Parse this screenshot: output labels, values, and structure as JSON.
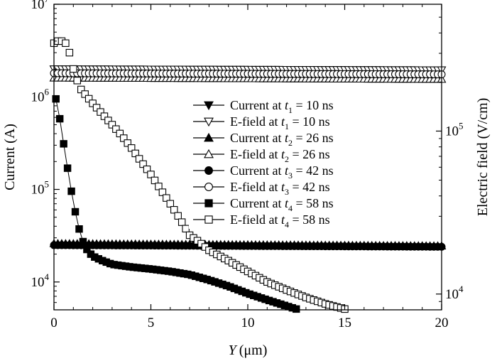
{
  "chart_data": {
    "type": "scatter",
    "xlabel": {
      "var": "Y",
      "unit": "(μm)"
    },
    "ylabel_left": "Current (A)",
    "ylabel_right": "Electric field (V/cm)",
    "xlim": [
      0,
      20
    ],
    "ylim_left": [
      5000,
      10000000
    ],
    "ylim_right": [
      8000,
      600000
    ],
    "yscale": "log",
    "x_ticks": [
      0,
      5,
      10,
      15,
      20
    ],
    "y_left_ticks": [
      {
        "value": 10000,
        "mantissa": "10",
        "exp": "4"
      },
      {
        "value": 100000,
        "mantissa": "10",
        "exp": "5"
      },
      {
        "value": 1000000,
        "mantissa": "10",
        "exp": "6"
      },
      {
        "value": 10000000,
        "mantissa": "10",
        "exp": "7"
      }
    ],
    "y_right_ticks": [
      {
        "value": 10000,
        "mantissa": "10",
        "exp": "4"
      },
      {
        "value": 100000,
        "mantissa": "10",
        "exp": "5"
      }
    ],
    "legend_position": "center-right",
    "series": [
      {
        "name": "Current at t1 = 10 ns",
        "label": {
          "pre": "Current at ",
          "var": "t",
          "sub": "1",
          "post": " = 10 ns"
        },
        "axis": "left",
        "marker": "triangle-down",
        "filled": true,
        "points": []
      },
      {
        "name": "E-field at t1 = 10 ns",
        "label": {
          "pre": "E-field at ",
          "var": "t",
          "sub": "1",
          "post": " = 10 ns"
        },
        "axis": "left",
        "marker": "triangle-down",
        "filled": false,
        "points": [
          [
            0,
            2000000
          ],
          [
            20,
            1950000
          ]
        ]
      },
      {
        "name": "Current at t2 = 26 ns",
        "label": {
          "pre": "Current at ",
          "var": "t",
          "sub": "2",
          "post": " = 26 ns"
        },
        "axis": "left",
        "marker": "triangle-up",
        "filled": true,
        "points": [
          [
            0,
            26000
          ],
          [
            20,
            24500
          ]
        ]
      },
      {
        "name": "E-field at t2 = 26 ns",
        "label": {
          "pre": "E-field at ",
          "var": "t",
          "sub": "2",
          "post": " = 26 ns"
        },
        "axis": "left",
        "marker": "triangle-up",
        "filled": false,
        "points": [
          [
            0,
            1600000
          ],
          [
            20,
            1550000
          ]
        ]
      },
      {
        "name": "Current at t3 = 42 ns",
        "label": {
          "pre": "Current at ",
          "var": "t",
          "sub": "3",
          "post": " = 42 ns"
        },
        "axis": "left",
        "marker": "circle",
        "filled": true,
        "points": [
          [
            0,
            25000
          ],
          [
            20,
            24000
          ]
        ]
      },
      {
        "name": "E-field at t3 = 42 ns",
        "label": {
          "pre": "E-field at ",
          "var": "t",
          "sub": "3",
          "post": " = 42 ns"
        },
        "axis": "left",
        "marker": "circle",
        "filled": false,
        "points": [
          [
            0,
            1800000
          ],
          [
            20,
            1750000
          ]
        ]
      },
      {
        "name": "Current at t4 = 58 ns",
        "label": {
          "pre": "Current at ",
          "var": "t",
          "sub": "4",
          "post": " = 58 ns"
        },
        "axis": "left",
        "marker": "square",
        "filled": true,
        "points": [
          [
            0.1,
            950000
          ],
          [
            0.2,
            800000
          ],
          [
            0.4,
            420000
          ],
          [
            0.6,
            230000
          ],
          [
            0.8,
            125000
          ],
          [
            1.0,
            73000
          ],
          [
            1.2,
            45000
          ],
          [
            1.4,
            31000
          ],
          [
            1.6,
            24000
          ],
          [
            1.8,
            21000
          ],
          [
            2.0,
            19000
          ],
          [
            2.5,
            17000
          ],
          [
            3,
            15500
          ],
          [
            4,
            14500
          ],
          [
            5,
            13800
          ],
          [
            6,
            13000
          ],
          [
            7,
            12000
          ],
          [
            8,
            10500
          ],
          [
            9,
            9000
          ],
          [
            10,
            7500
          ],
          [
            11,
            6400
          ],
          [
            12,
            5500
          ],
          [
            12.5,
            5100
          ]
        ]
      },
      {
        "name": "E-field at t4 = 58 ns",
        "label": {
          "pre": "E-field at ",
          "var": "t",
          "sub": "4",
          "post": " = 58 ns"
        },
        "axis": "left",
        "marker": "square",
        "filled": false,
        "points": [
          [
            0,
            3800000
          ],
          [
            0.2,
            4000000
          ],
          [
            0.4,
            4000000
          ],
          [
            0.6,
            3800000
          ],
          [
            0.8,
            3000000
          ],
          [
            1,
            2000000
          ],
          [
            1.2,
            1500000
          ],
          [
            1.4,
            1200000
          ],
          [
            2,
            850000
          ],
          [
            2.5,
            650000
          ],
          [
            3,
            500000
          ],
          [
            3.5,
            380000
          ],
          [
            4,
            280000
          ],
          [
            4.5,
            200000
          ],
          [
            5,
            145000
          ],
          [
            5.5,
            100000
          ],
          [
            6,
            70000
          ],
          [
            6.5,
            48000
          ],
          [
            7,
            32000
          ],
          [
            7.5,
            27000
          ],
          [
            8,
            22000
          ],
          [
            9,
            17000
          ],
          [
            10,
            13000
          ],
          [
            11,
            10000
          ],
          [
            12,
            8200
          ],
          [
            13,
            6800
          ],
          [
            14,
            5800
          ],
          [
            15,
            5100
          ]
        ]
      }
    ]
  }
}
